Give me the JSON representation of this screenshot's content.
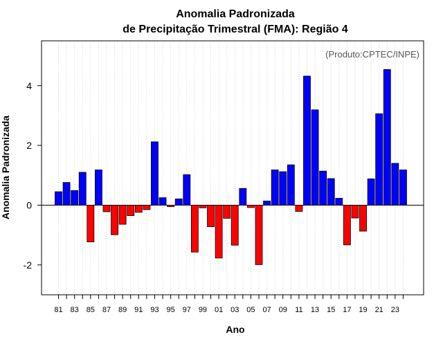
{
  "chart_data": {
    "type": "bar",
    "title": [
      "Anomalia Padronizada",
      "de Precipitação Trimestral (FMA): Região 4"
    ],
    "credit": "(Produto:CPTEC/INPE)",
    "xlabel": "Ano",
    "ylabel": "Anomalia Padronizada",
    "ylim": [
      -3.0,
      5.5
    ],
    "yticks": [
      -2,
      0,
      2,
      4
    ],
    "ytick_labels": [
      "-2",
      "0",
      "2",
      "4"
    ],
    "grid": "vertical dotted",
    "positive_color": "#0000ff",
    "negative_color": "#ff0000",
    "categories": [
      "81",
      "82",
      "83",
      "84",
      "85",
      "86",
      "87",
      "88",
      "89",
      "90",
      "91",
      "92",
      "93",
      "94",
      "95",
      "96",
      "97",
      "98",
      "99",
      "00",
      "01",
      "02",
      "03",
      "04",
      "05",
      "06",
      "07",
      "08",
      "09",
      "10",
      "11",
      "12",
      "13",
      "14",
      "15",
      "16",
      "17",
      "18",
      "19",
      "20",
      "21",
      "22",
      "23",
      "24"
    ],
    "xtick_labels": [
      "81",
      "83",
      "85",
      "87",
      "89",
      "91",
      "93",
      "95",
      "97",
      "99",
      "01",
      "03",
      "05",
      "07",
      "09",
      "11",
      "13",
      "15",
      "17",
      "19",
      "21",
      "23"
    ],
    "values": [
      0.45,
      0.76,
      0.49,
      1.1,
      -1.23,
      1.18,
      -0.22,
      -0.99,
      -0.64,
      -0.35,
      -0.24,
      -0.15,
      2.12,
      0.25,
      -0.05,
      0.21,
      1.02,
      -1.57,
      -0.09,
      -0.72,
      -1.77,
      -0.44,
      -1.34,
      0.56,
      -0.08,
      -1.99,
      0.14,
      1.18,
      1.12,
      1.35,
      -0.21,
      4.32,
      3.19,
      1.14,
      0.89,
      0.23,
      -1.33,
      -0.43,
      -0.87,
      0.88,
      3.06,
      4.54,
      1.4,
      1.18
    ]
  }
}
